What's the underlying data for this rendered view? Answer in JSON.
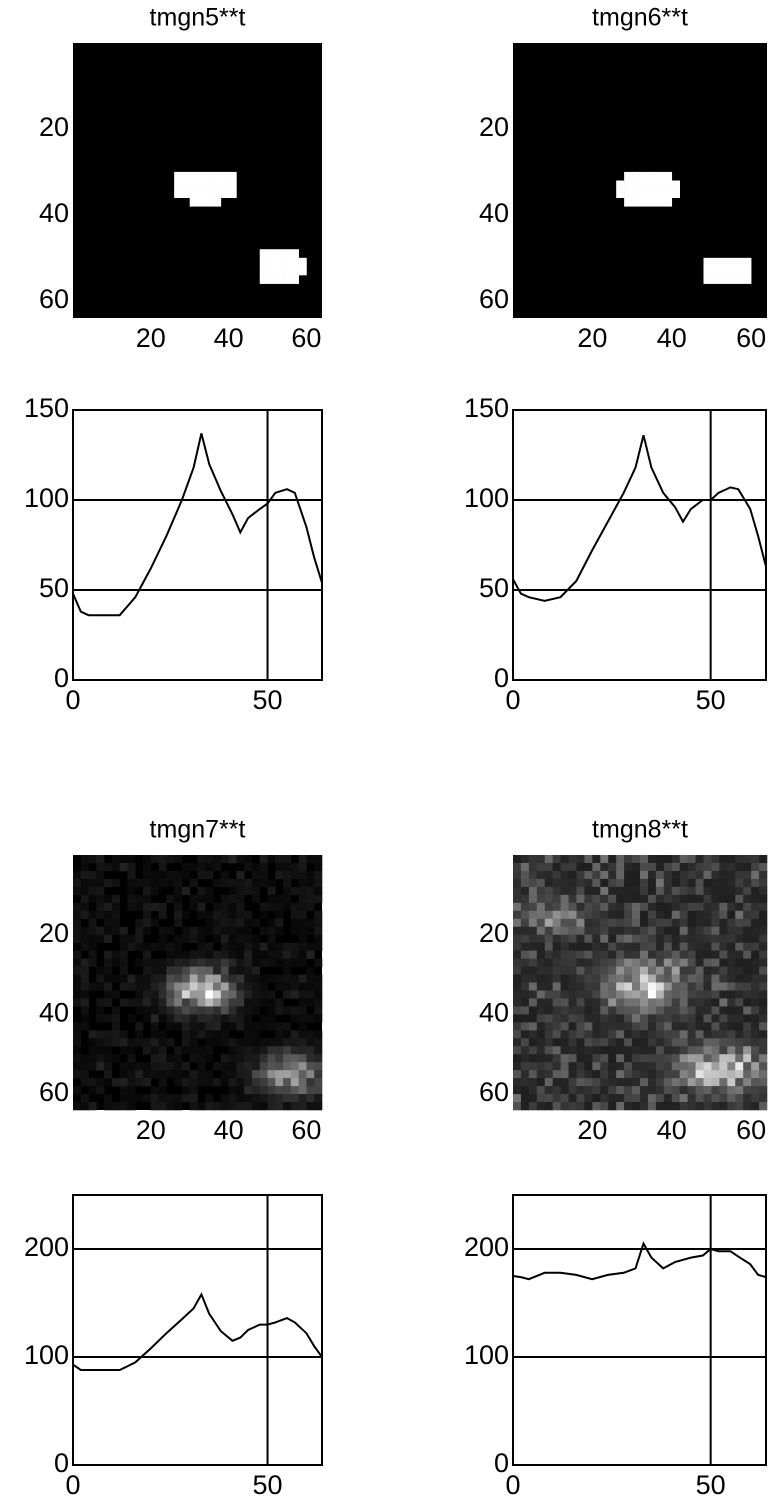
{
  "chart_data": [
    {
      "type": "image",
      "title": "tmgn5**t",
      "xlim": [
        0,
        64
      ],
      "ylim": [
        64,
        0
      ],
      "xticks": [
        20,
        40,
        60
      ],
      "yticks": [
        20,
        40,
        60
      ]
    },
    {
      "type": "image",
      "title": "tmgn6**t",
      "xlim": [
        0,
        64
      ],
      "ylim": [
        64,
        0
      ],
      "xticks": [
        20,
        40,
        60
      ],
      "yticks": [
        20,
        40,
        60
      ]
    },
    {
      "type": "line",
      "x": [
        0,
        2,
        4,
        8,
        12,
        16,
        20,
        24,
        28,
        31,
        33,
        35,
        38,
        41,
        43,
        45,
        48,
        50,
        52,
        55,
        57,
        60,
        62,
        64
      ],
      "values": [
        48,
        38,
        36,
        36,
        36,
        46,
        62,
        80,
        100,
        118,
        137,
        120,
        105,
        92,
        82,
        90,
        95,
        98,
        104,
        106,
        104,
        85,
        68,
        54
      ],
      "color": "#000000",
      "xlim": [
        0,
        64
      ],
      "ylim": [
        0,
        150
      ],
      "xticks": [
        0,
        50
      ],
      "yticks": [
        0,
        50,
        100,
        150
      ],
      "grid": true
    },
    {
      "type": "line",
      "x": [
        0,
        2,
        4,
        8,
        12,
        16,
        20,
        24,
        28,
        31,
        33,
        35,
        38,
        41,
        43,
        45,
        48,
        50,
        52,
        55,
        57,
        60,
        62,
        64
      ],
      "values": [
        56,
        48,
        46,
        44,
        46,
        55,
        72,
        88,
        104,
        118,
        136,
        118,
        104,
        96,
        88,
        95,
        100,
        100,
        104,
        107,
        106,
        95,
        80,
        63
      ],
      "color": "#000000",
      "xlim": [
        0,
        64
      ],
      "ylim": [
        0,
        150
      ],
      "xticks": [
        0,
        50
      ],
      "yticks": [
        0,
        50,
        100,
        150
      ],
      "grid": true
    },
    {
      "type": "image",
      "title": "tmgn7**t",
      "xlim": [
        0,
        64
      ],
      "ylim": [
        64,
        0
      ],
      "xticks": [
        20,
        40,
        60
      ],
      "yticks": [
        20,
        40,
        60
      ]
    },
    {
      "type": "image",
      "title": "tmgn8**t",
      "xlim": [
        0,
        64
      ],
      "ylim": [
        64,
        0
      ],
      "xticks": [
        20,
        40,
        60
      ],
      "yticks": [
        20,
        40,
        60
      ]
    },
    {
      "type": "line",
      "x": [
        0,
        2,
        4,
        8,
        12,
        16,
        20,
        24,
        28,
        31,
        33,
        35,
        38,
        41,
        43,
        45,
        48,
        50,
        52,
        55,
        57,
        60,
        62,
        64
      ],
      "values": [
        93,
        88,
        88,
        88,
        88,
        95,
        108,
        122,
        135,
        145,
        158,
        140,
        124,
        115,
        118,
        125,
        130,
        130,
        132,
        136,
        132,
        122,
        110,
        100
      ],
      "color": "#000000",
      "xlim": [
        0,
        64
      ],
      "ylim": [
        0,
        250
      ],
      "xticks": [
        0,
        50
      ],
      "yticks": [
        0,
        100,
        200
      ],
      "grid": true
    },
    {
      "type": "line",
      "x": [
        0,
        2,
        4,
        8,
        12,
        16,
        20,
        24,
        28,
        31,
        33,
        35,
        38,
        41,
        43,
        45,
        48,
        50,
        52,
        55,
        57,
        60,
        62,
        64
      ],
      "values": [
        175,
        174,
        172,
        178,
        178,
        176,
        172,
        176,
        178,
        182,
        205,
        192,
        182,
        188,
        190,
        192,
        194,
        200,
        198,
        198,
        193,
        186,
        176,
        174
      ],
      "color": "#000000",
      "xlim": [
        0,
        64
      ],
      "ylim": [
        0,
        250
      ],
      "xticks": [
        0,
        50
      ],
      "yticks": [
        0,
        100,
        200
      ],
      "grid": true
    }
  ]
}
